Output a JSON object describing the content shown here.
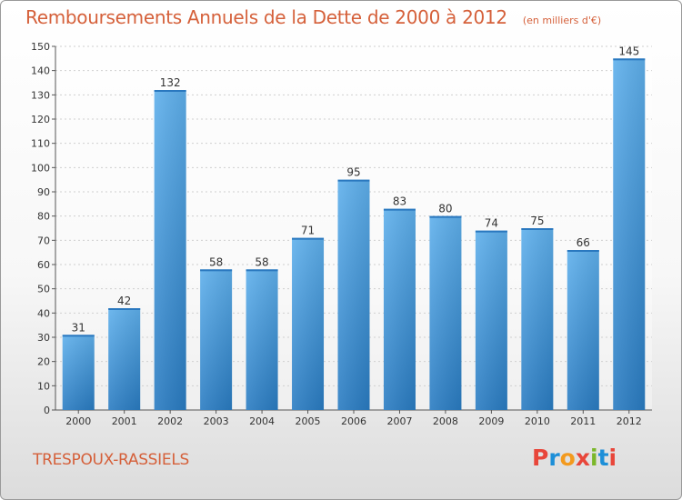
{
  "header": {
    "title": "Remboursements Annuels de la Dette de 2000 à 2012",
    "unit_note": "(en milliers d'€)"
  },
  "footer": {
    "place_name": "TRESPOUX-RASSIELS"
  },
  "logo": {
    "letters": [
      "P",
      "r",
      "o",
      "x",
      "i",
      "t",
      "i"
    ],
    "colors": [
      "#e8463a",
      "#1d8fd8",
      "#f39a1e",
      "#e8463a",
      "#7bb72a",
      "#1d8fd8",
      "#e8463a"
    ]
  },
  "chart_data": {
    "type": "bar",
    "categories": [
      "2000",
      "2001",
      "2002",
      "2003",
      "2004",
      "2005",
      "2006",
      "2007",
      "2008",
      "2009",
      "2010",
      "2011",
      "2012"
    ],
    "values": [
      31,
      42,
      132,
      58,
      58,
      71,
      95,
      83,
      80,
      74,
      75,
      66,
      145
    ],
    "ylim": [
      0,
      150
    ],
    "yticks": [
      0,
      10,
      20,
      30,
      40,
      50,
      60,
      70,
      80,
      90,
      100,
      110,
      120,
      130,
      140,
      150
    ],
    "grid": true,
    "bar_color": "#4a9fe0",
    "text_color": "#d5603a"
  }
}
